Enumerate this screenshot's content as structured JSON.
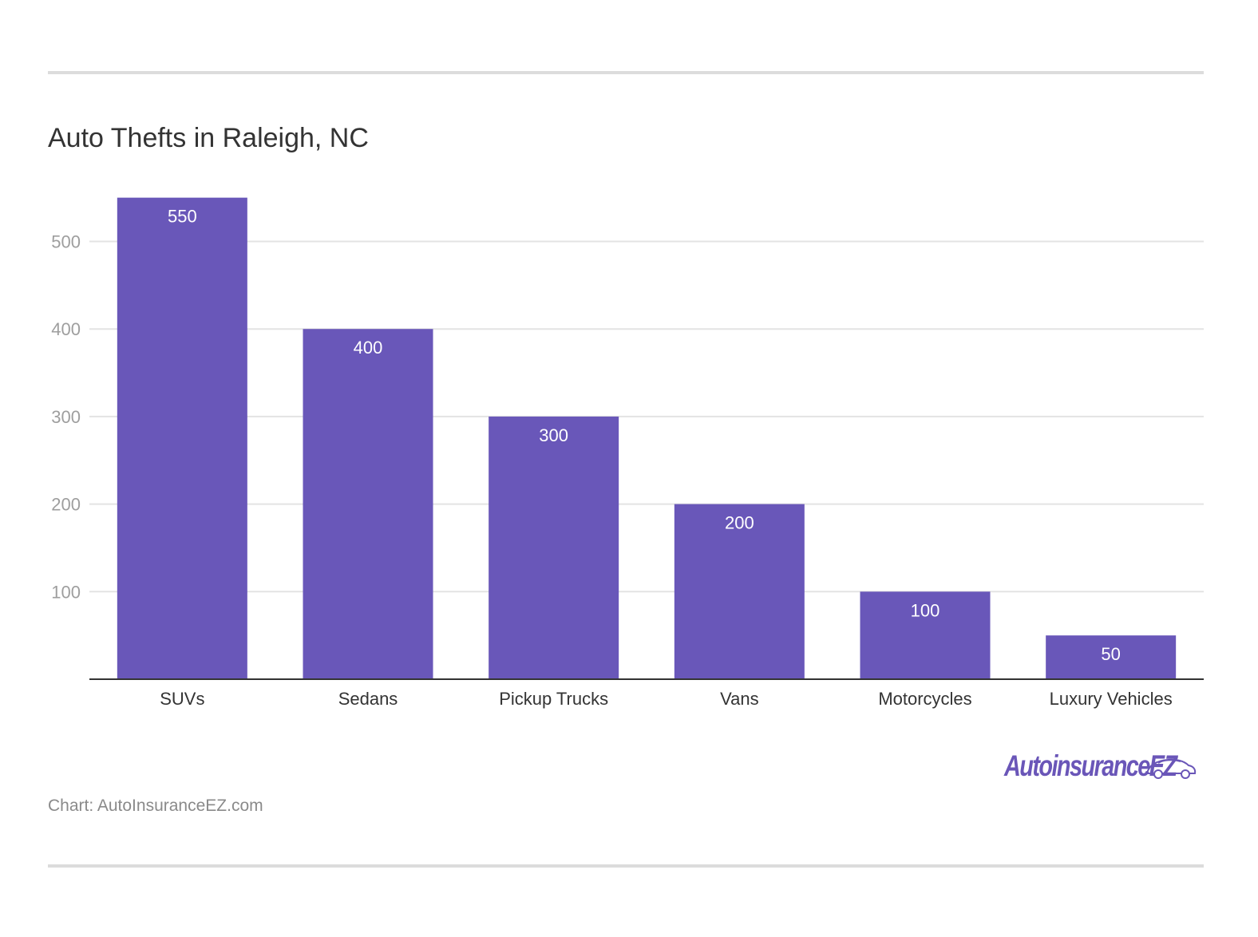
{
  "chart_data": {
    "type": "bar",
    "title": "Auto Thefts in Raleigh, NC",
    "categories": [
      "SUVs",
      "Sedans",
      "Pickup Trucks",
      "Vans",
      "Motorcycles",
      "Luxury Vehicles"
    ],
    "values": [
      550,
      400,
      300,
      200,
      100,
      50
    ],
    "data_labels": [
      "550",
      "400",
      "300",
      "200",
      "100",
      "50"
    ],
    "ylim": [
      0,
      600
    ],
    "yticks": [
      100,
      200,
      300,
      400,
      500
    ],
    "ytick_labels": [
      "100",
      "200",
      "300",
      "400",
      "500"
    ],
    "xlabel": "",
    "ylabel": "",
    "grid": true,
    "legend": "none",
    "bar_color": "#6957b9",
    "grid_color": "#e3e3e3",
    "axis_color": "#333333"
  },
  "footer": {
    "source": "Chart: AutoInsuranceEZ.com",
    "logo_text": "AutoinsuranceEZ",
    "logo_icon": "car-icon",
    "logo_color": "#6a56b8"
  }
}
